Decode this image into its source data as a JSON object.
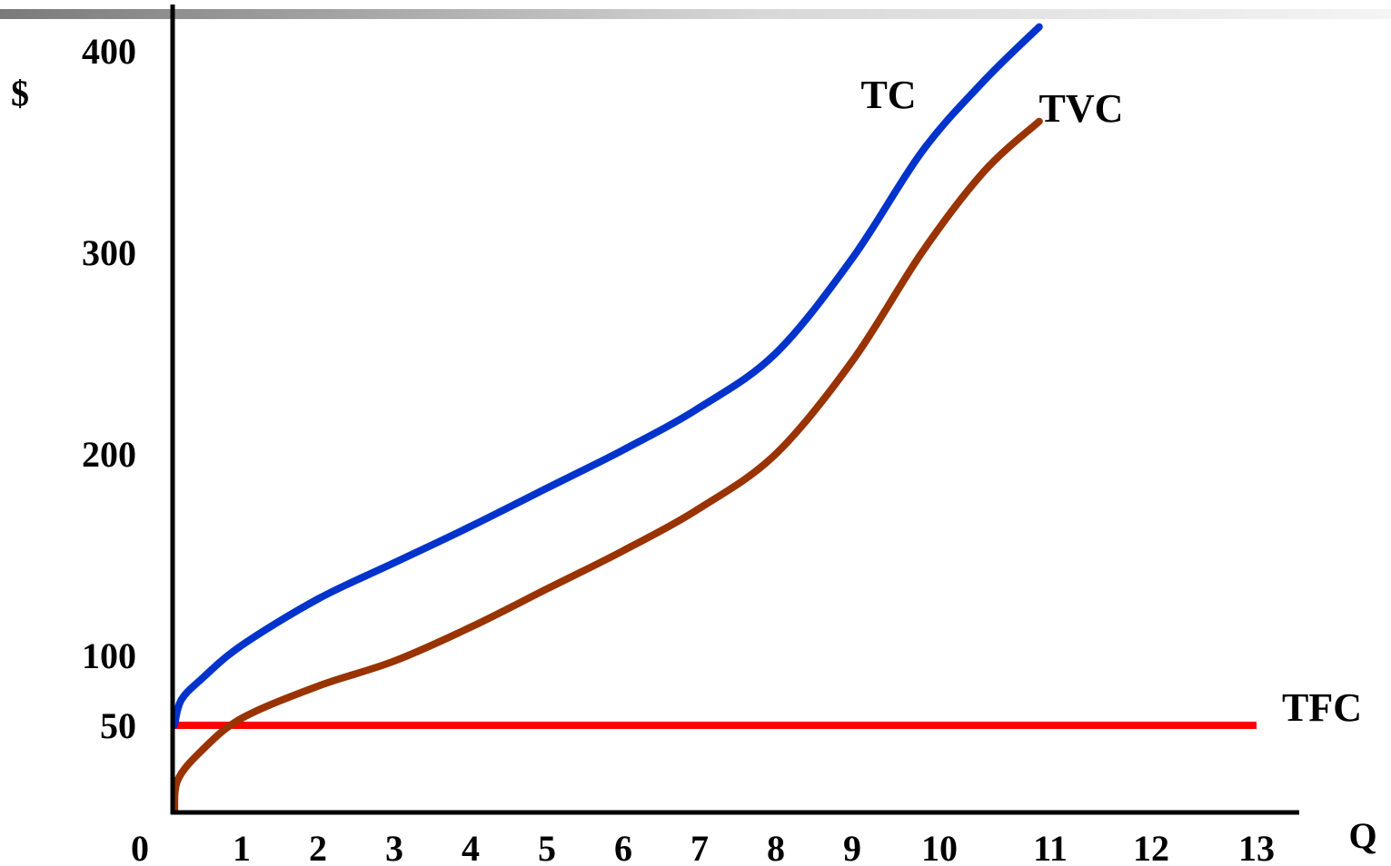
{
  "chart_data": {
    "type": "line",
    "xlabel": "Q",
    "ylabel": "$",
    "xlim": [
      0,
      13
    ],
    "ylim": [
      0,
      400
    ],
    "x_ticks": [
      "0",
      "1",
      "2",
      "3",
      "4",
      "5",
      "6",
      "7",
      "8",
      "9",
      "10",
      "11",
      "12",
      "13"
    ],
    "y_ticks": [
      {
        "label": "400",
        "value": 400
      },
      {
        "label": "300",
        "value": 300
      },
      {
        "label": "200",
        "value": 200
      },
      {
        "label": "100",
        "value": 100
      },
      {
        "label": "50",
        "value": 50
      }
    ],
    "grid": false,
    "legend": "inline labels at line ends",
    "colors": {
      "TC": "#0033cc",
      "TVC": "#993300",
      "TFC": "#ff0000",
      "axes": "#000000",
      "top_rule": "#808080"
    },
    "series": [
      {
        "name": "TC",
        "label": "TC",
        "x": [
          0,
          0.1,
          0.4,
          1,
          2,
          3,
          4,
          5,
          6,
          7,
          8,
          9,
          9.8,
          10.4,
          10.9
        ],
        "y": [
          50,
          68,
          83,
          105,
          128,
          146,
          164,
          183,
          202,
          223,
          250,
          297,
          350,
          385,
          412
        ]
      },
      {
        "name": "TVC",
        "label": "TVC",
        "x": [
          0,
          0.05,
          0.4,
          1,
          2,
          3,
          4,
          5,
          6,
          7,
          8,
          9,
          9.8,
          10.4,
          10.9
        ],
        "y": [
          0,
          18,
          35,
          55,
          78,
          96,
          114,
          133,
          152,
          173,
          200,
          246,
          300,
          340,
          365
        ]
      },
      {
        "name": "TFC",
        "label": "TFC",
        "x": [
          0,
          13
        ],
        "y": [
          50,
          50
        ]
      }
    ]
  }
}
